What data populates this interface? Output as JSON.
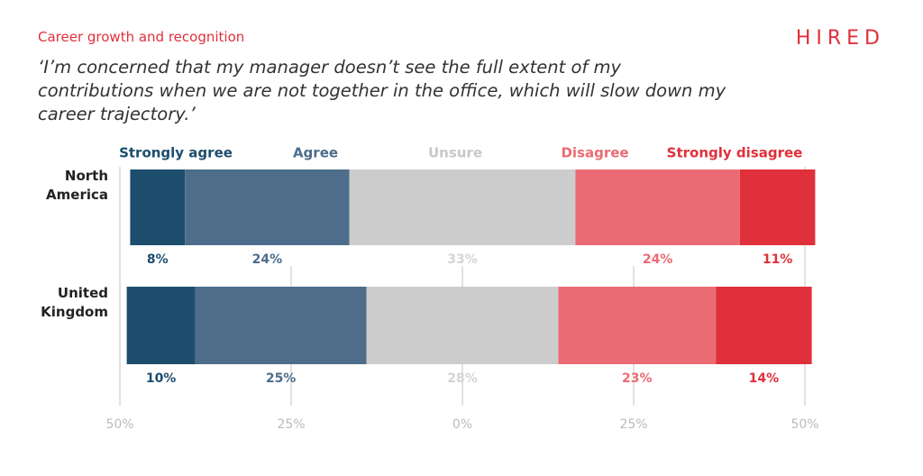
{
  "chart_data": {
    "type": "diverging_bar",
    "brand": "HIRED",
    "subtitle": "Career growth and recognition",
    "title": "‘I’m concerned that my manager doesn’t see the full extent of my contributions when we are not together in the office, which will slow down my career trajectory.’",
    "categories": [
      "North America",
      "United Kingdom"
    ],
    "series": [
      {
        "name": "Strongly agree",
        "color": "#1d4e6e",
        "values": [
          8,
          10
        ],
        "value_labels": [
          "8%",
          "10%"
        ]
      },
      {
        "name": "Agree",
        "color": "#4d6d8a",
        "values": [
          24,
          25
        ],
        "value_labels": [
          "24%",
          "25%"
        ]
      },
      {
        "name": "Unsure",
        "color": "#cccccc",
        "values": [
          33,
          28
        ],
        "value_labels": [
          "33%",
          "28%"
        ]
      },
      {
        "name": "Disagree",
        "color": "#eb6b74",
        "values": [
          24,
          23
        ],
        "value_labels": [
          "24%",
          "23%"
        ]
      },
      {
        "name": "Strongly disagree",
        "color": "#e0303b",
        "values": [
          11,
          14
        ],
        "value_labels": [
          "11%",
          "14%"
        ]
      }
    ],
    "xlim": [
      -50,
      50
    ],
    "xticks": [
      {
        "value": -50,
        "label": "50%"
      },
      {
        "value": -25,
        "label": "25%"
      },
      {
        "value": 0,
        "label": "0%"
      },
      {
        "value": 25,
        "label": "25%"
      },
      {
        "value": 50,
        "label": "50%"
      }
    ],
    "grid": true
  }
}
